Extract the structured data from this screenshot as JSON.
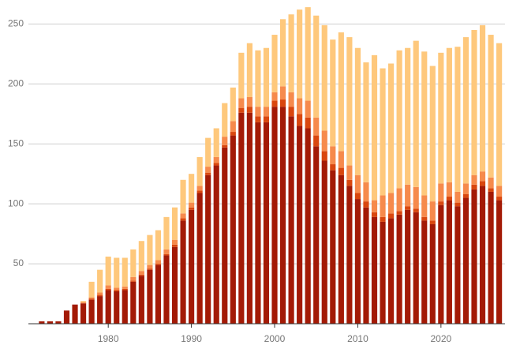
{
  "chart_data": {
    "type": "stacked-bar",
    "x": [
      1972,
      1973,
      1974,
      1975,
      1976,
      1977,
      1978,
      1979,
      1980,
      1981,
      1982,
      1983,
      1984,
      1985,
      1986,
      1987,
      1988,
      1989,
      1990,
      1991,
      1992,
      1993,
      1994,
      1995,
      1996,
      1997,
      1998,
      1999,
      2000,
      2001,
      2002,
      2003,
      2004,
      2005,
      2006,
      2007,
      2008,
      2009,
      2010,
      2011,
      2012,
      2013,
      2014,
      2015,
      2016,
      2017,
      2018,
      2019,
      2020,
      2021,
      2022,
      2023,
      2024,
      2025,
      2026,
      2027
    ],
    "series": [
      {
        "color": "#a31a06",
        "values": [
          2,
          2,
          2,
          11,
          16,
          17,
          20,
          23,
          28,
          27,
          28,
          35,
          40,
          45,
          49,
          57,
          64,
          86,
          95,
          109,
          124,
          132,
          147,
          157,
          176,
          176,
          168,
          168,
          181,
          181,
          173,
          165,
          163,
          148,
          136,
          128,
          124,
          115,
          104,
          97,
          89,
          85,
          88,
          91,
          95,
          93,
          86,
          83,
          99,
          103,
          98,
          105,
          112,
          115,
          110,
          103
        ]
      },
      {
        "color": "#d9470f",
        "values": [
          0,
          0,
          0,
          0,
          0,
          0,
          1,
          1,
          1,
          1,
          1,
          1,
          1,
          1,
          1,
          1,
          2,
          2,
          2,
          2,
          2,
          2,
          2,
          3,
          4,
          5,
          5,
          5,
          5,
          6,
          8,
          10,
          9,
          9,
          8,
          5,
          6,
          5,
          5,
          5,
          4,
          4,
          4,
          3,
          3,
          3,
          3,
          3,
          3,
          3,
          3,
          3,
          4,
          4,
          3,
          3
        ]
      },
      {
        "color": "#f68a4c",
        "values": [
          0,
          0,
          0,
          0,
          0,
          1,
          1,
          2,
          3,
          2,
          2,
          3,
          3,
          3,
          3,
          4,
          4,
          4,
          4,
          4,
          5,
          5,
          7,
          9,
          8,
          8,
          8,
          8,
          7,
          11,
          12,
          13,
          14,
          15,
          17,
          15,
          14,
          12,
          15,
          16,
          10,
          18,
          17,
          19,
          18,
          18,
          18,
          16,
          15,
          12,
          9,
          9,
          8,
          8,
          9,
          9
        ]
      },
      {
        "color": "#fec87c",
        "values": [
          0,
          0,
          0,
          0,
          0,
          1,
          13,
          19,
          24,
          25,
          24,
          23,
          25,
          25,
          25,
          27,
          27,
          28,
          24,
          24,
          24,
          24,
          28,
          28,
          38,
          45,
          47,
          49,
          48,
          56,
          65,
          74,
          78,
          85,
          88,
          89,
          99,
          107,
          106,
          100,
          121,
          106,
          108,
          115,
          114,
          122,
          120,
          113,
          109,
          112,
          121,
          122,
          121,
          122,
          119,
          119
        ]
      }
    ],
    "xlim": [
      1970.4,
      2027.7
    ],
    "xticks": [
      1980,
      1990,
      2000,
      2010,
      2020
    ],
    "ylim": [
      0,
      270
    ],
    "yticks": [
      50,
      100,
      150,
      200,
      250
    ],
    "grid": true
  }
}
